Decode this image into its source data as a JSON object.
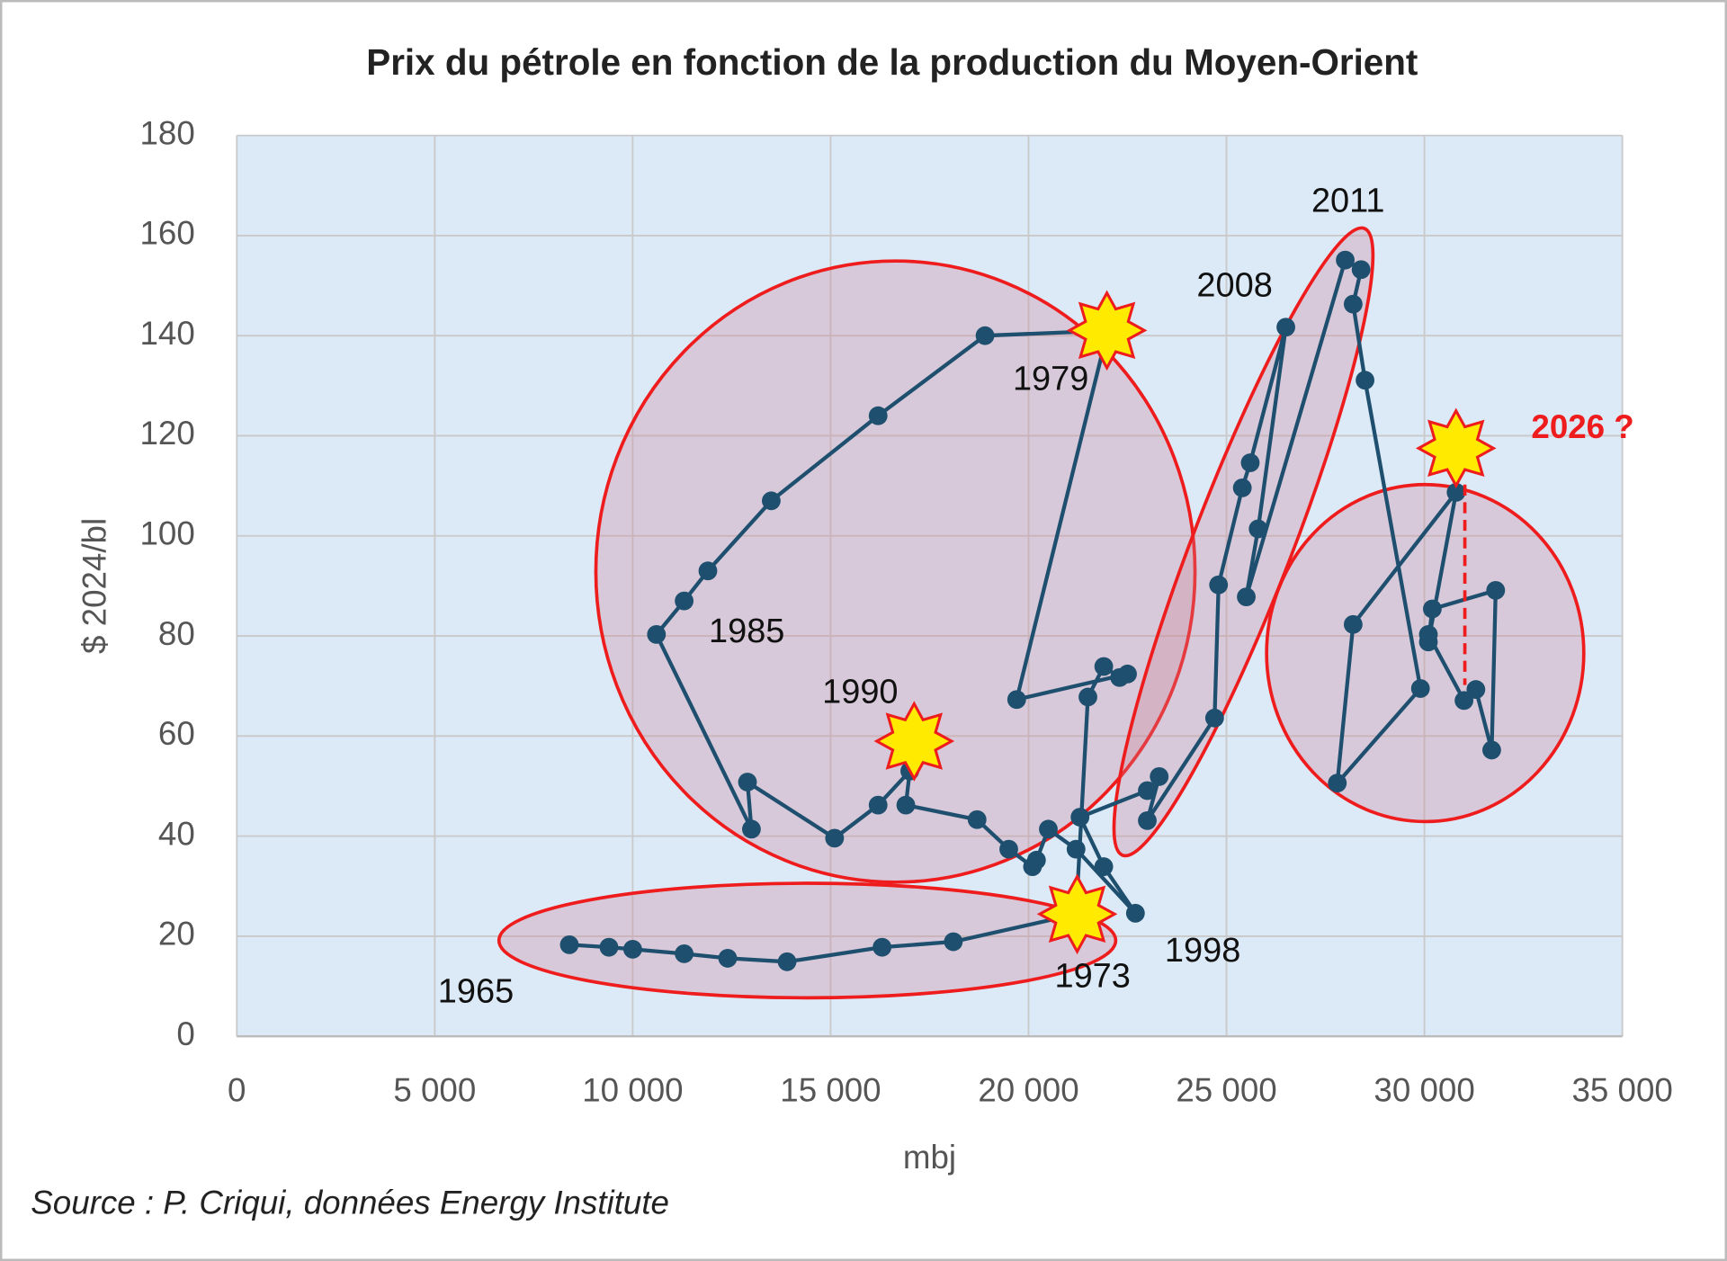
{
  "chart_data": {
    "type": "line",
    "title": "Prix du pétrole en fonction de la production du Moyen-Orient",
    "x_label": "mbj",
    "y_label": "$ 2024/bl",
    "source": "Source : P. Criqui, données Energy Institute",
    "color": "#1f4f6e",
    "grid": true,
    "xlim": [
      0,
      35000
    ],
    "xticks": [
      0,
      {
        "value": 5000,
        "label": "5 000"
      },
      {
        "value": 10000,
        "label": "10 000"
      },
      {
        "value": 15000,
        "label": "15 000"
      },
      {
        "value": 20000,
        "label": "20 000"
      },
      {
        "value": 25000,
        "label": "25 000"
      },
      {
        "value": 30000,
        "label": "30 000"
      },
      {
        "value": 35000,
        "label": "35 000"
      }
    ],
    "ylim": [
      0,
      180
    ],
    "yticks": [
      0,
      20,
      40,
      60,
      80,
      100,
      120,
      140,
      160,
      180
    ],
    "x": [
      8400,
      9400,
      10000,
      11300,
      12400,
      13900,
      16300,
      18100,
      21200,
      21500,
      21900,
      22300,
      22500,
      19700,
      22000,
      18900,
      16200,
      13500,
      11900,
      11300,
      10600,
      13000,
      12900,
      15100,
      16200,
      17000,
      16900,
      18700,
      19500,
      20100,
      20200,
      20500,
      21200,
      22700,
      21900,
      21300,
      23000,
      23300,
      23000,
      24700,
      24800,
      25400,
      25600,
      26500,
      25800,
      25500,
      28000,
      28400,
      28200,
      28500,
      29900,
      27800,
      28200,
      30800,
      30100,
      30200,
      31800,
      31700,
      31300,
      31000,
      30100
    ],
    "values": [
      18.3,
      17.8,
      17.4,
      16.5,
      15.6,
      14.9,
      17.8,
      18.9,
      24.4,
      67.8,
      73.9,
      71.7,
      72.4,
      67.3,
      141,
      140,
      124,
      107,
      93,
      87,
      80.3,
      41.4,
      50.8,
      39.6,
      46.2,
      53,
      46.2,
      43.3,
      37.4,
      33.9,
      35.2,
      41.4,
      37.4,
      24.6,
      33.9,
      43.8,
      49.1,
      51.9,
      43.1,
      63.6,
      90.2,
      109.6,
      114.6,
      141.7,
      101.4,
      87.8,
      155.1,
      153.2,
      146.3,
      131.1,
      69.5,
      50.6,
      82.3,
      108.7,
      78.8,
      85.4,
      89.1,
      57.2,
      69.3,
      67.1,
      80.3
    ],
    "annotations": [
      "1965",
      "1973",
      "1979",
      "1985",
      "1990",
      "1998",
      "2008",
      "2011",
      "2026 ?"
    ]
  }
}
